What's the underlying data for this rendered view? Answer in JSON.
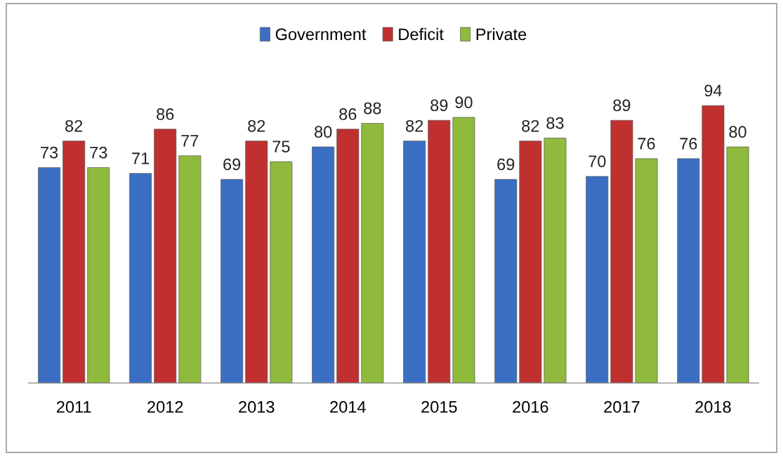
{
  "chart_data": {
    "type": "bar",
    "categories": [
      "2011",
      "2012",
      "2013",
      "2014",
      "2015",
      "2016",
      "2017",
      "2018"
    ],
    "series": [
      {
        "name": "Government",
        "color": "#3b6fc4",
        "values": [
          73,
          71,
          69,
          80,
          82,
          69,
          70,
          76
        ]
      },
      {
        "name": "Deficit",
        "color": "#c0302f",
        "values": [
          82,
          86,
          82,
          86,
          89,
          82,
          89,
          94
        ]
      },
      {
        "name": "Private",
        "color": "#8fba3c",
        "values": [
          73,
          77,
          75,
          88,
          90,
          83,
          76,
          80
        ]
      }
    ],
    "tick_labels": "x",
    "data_labels": true,
    "legend": "top"
  }
}
